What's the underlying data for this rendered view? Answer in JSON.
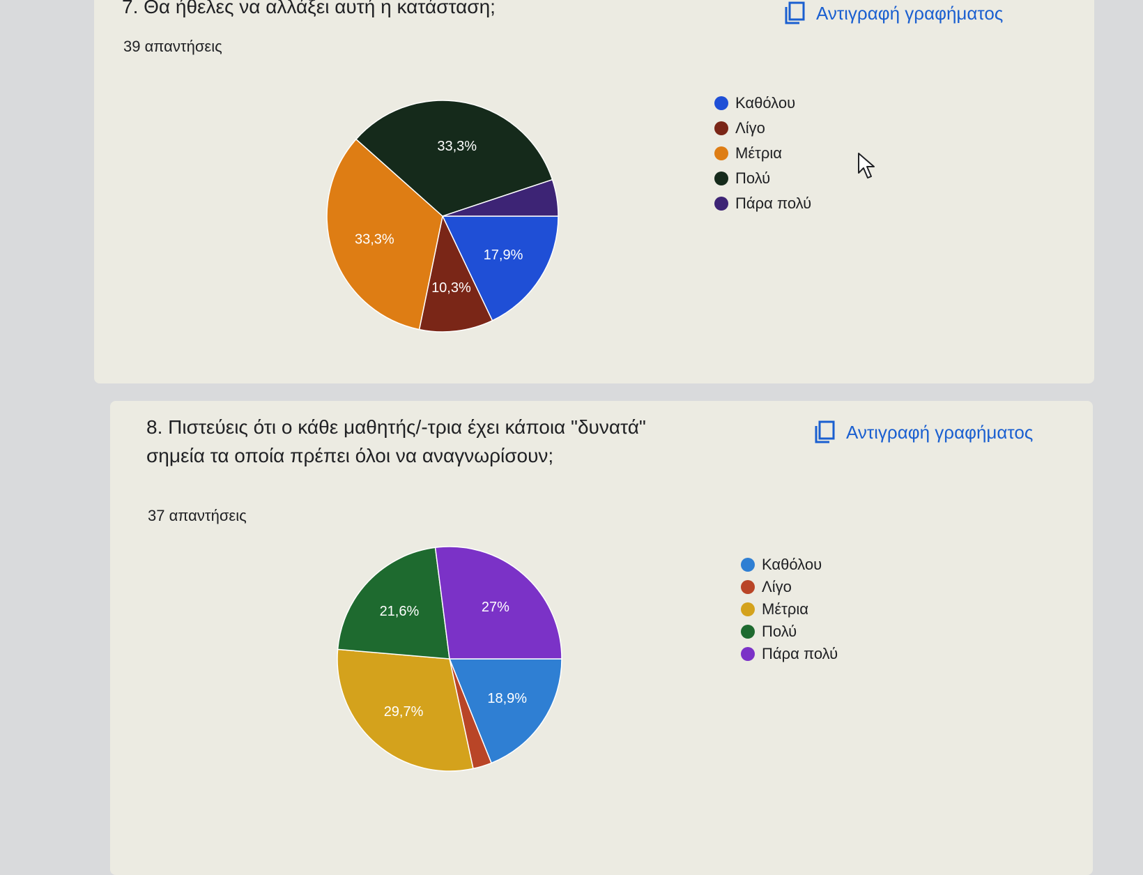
{
  "questions": [
    {
      "title": "7. Θα ήθελες να αλλάξει αυτή η κατάσταση;",
      "responses": "39 απαντήσεις",
      "copy_label": "Αντιγραφή γραφήματος"
    },
    {
      "title_line1": "8. Πιστεύεις ότι ο κάθε μαθητής/-τρια έχει κάποια \"δυνατά\"",
      "title_line2": "σημεία τα οποία πρέπει όλοι να αναγνωρίσουν;",
      "responses": "37 απαντήσεις",
      "copy_label": "Αντιγραφή γραφήματος"
    }
  ],
  "chart_data": [
    {
      "type": "pie",
      "categories": [
        "Καθόλου",
        "Λίγο",
        "Μέτρια",
        "Πολύ",
        "Πάρα πολύ"
      ],
      "values": [
        17.9,
        10.3,
        33.3,
        33.3,
        5.1
      ],
      "labels": [
        "17,9%",
        "10,3%",
        "33,3%",
        "33,3%",
        ""
      ],
      "colors": [
        "#1f4fd6",
        "#7a2617",
        "#de7d14",
        "#152a1b",
        "#3d2475"
      ],
      "legend_position": "right"
    },
    {
      "type": "pie",
      "categories": [
        "Καθόλου",
        "Λίγο",
        "Μέτρια",
        "Πολύ",
        "Πάρα πολύ"
      ],
      "values": [
        18.9,
        2.7,
        29.7,
        21.6,
        27
      ],
      "labels": [
        "18,9%",
        "",
        "29,7%",
        "21,6%",
        "27%"
      ],
      "colors": [
        "#2f7fd3",
        "#b94527",
        "#d4a21c",
        "#1e6a2f",
        "#7b32c7"
      ],
      "legend_position": "right"
    }
  ]
}
